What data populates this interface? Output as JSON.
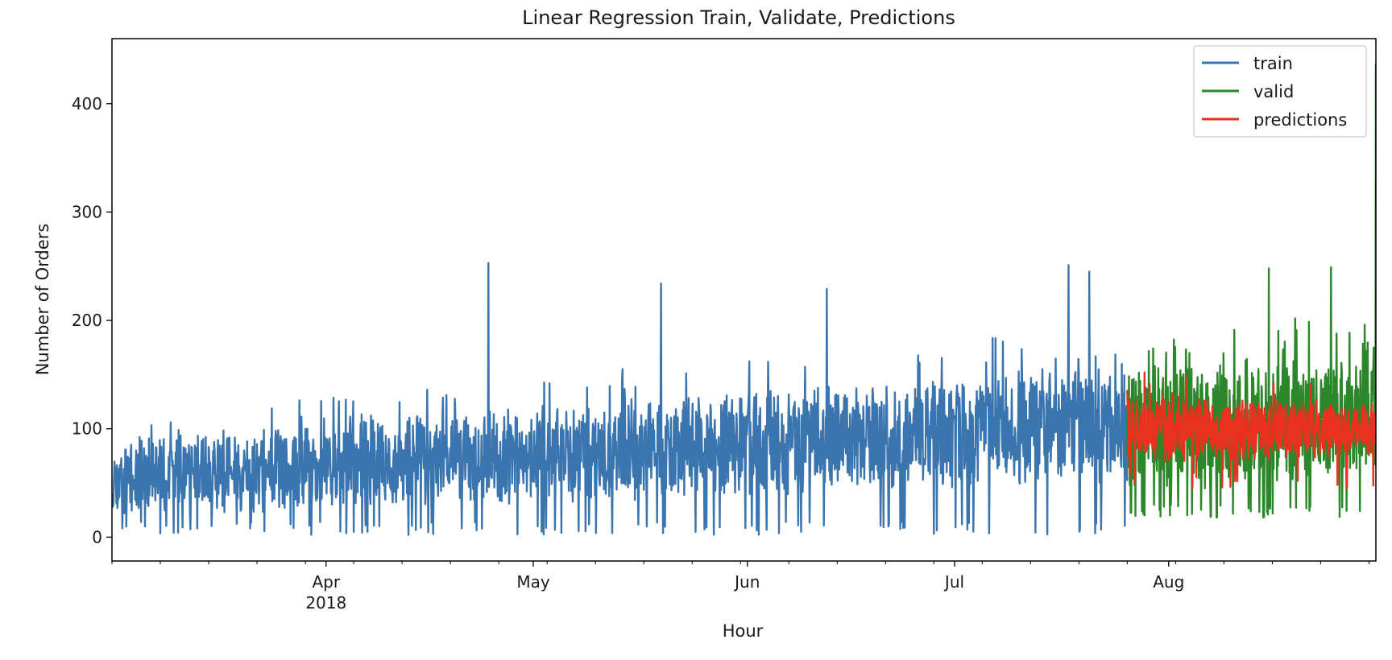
{
  "chart_data": {
    "type": "line",
    "title": "Linear Regression Train, Validate, Predictions",
    "xlabel": "Hour",
    "ylabel": "Number of Orders",
    "x_range": [
      "2018-03-01",
      "2018-08-31"
    ],
    "ylim": [
      -22,
      460
    ],
    "y_ticks": [
      0,
      100,
      200,
      300,
      400
    ],
    "x_ticks": [
      {
        "date": "2018-04-01",
        "label": "Apr",
        "sublabel": "2018"
      },
      {
        "date": "2018-05-01",
        "label": "May",
        "sublabel": ""
      },
      {
        "date": "2018-06-01",
        "label": "Jun",
        "sublabel": ""
      },
      {
        "date": "2018-07-01",
        "label": "Jul",
        "sublabel": ""
      },
      {
        "date": "2018-08-01",
        "label": "Aug",
        "sublabel": ""
      }
    ],
    "grid": false,
    "legend_position": "top-right",
    "series": [
      {
        "name": "train",
        "color": "#3a75af",
        "x_start": "2018-03-01",
        "x_end": "2018-07-26",
        "baseline_start": 55,
        "baseline_end": 105,
        "notable_peaks": [
          {
            "date": "2018-04-24",
            "value": 253
          },
          {
            "date": "2018-05-19",
            "value": 234
          },
          {
            "date": "2018-06-12",
            "value": 229
          },
          {
            "date": "2018-07-17",
            "value": 251
          },
          {
            "date": "2018-07-20",
            "value": 245
          }
        ]
      },
      {
        "name": "valid",
        "color": "#2c862a",
        "x_start": "2018-07-26",
        "x_end": "2018-08-31",
        "baseline_start": 100,
        "baseline_end": 110,
        "notable_peaks": [
          {
            "date": "2018-08-31",
            "value": 437
          },
          {
            "date": "2018-08-24",
            "value": 249
          },
          {
            "date": "2018-08-15",
            "value": 248
          }
        ]
      },
      {
        "name": "predictions",
        "color": "#e8321f",
        "x_start": "2018-07-26",
        "x_end": "2018-08-31",
        "baseline_start": 100,
        "baseline_end": 100,
        "notable_peaks": [
          {
            "date": "2018-07-28",
            "value": 152
          }
        ]
      }
    ]
  }
}
